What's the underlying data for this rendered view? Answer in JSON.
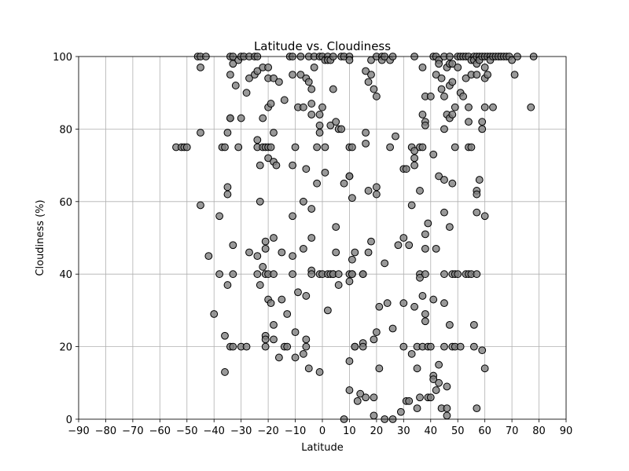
{
  "chart_data": {
    "type": "scatter",
    "title": "Latitude vs. Cloudiness",
    "xlabel": "Latitude",
    "ylabel": "Cloudiness (%)",
    "xlim": [
      -90,
      90
    ],
    "ylim": [
      0,
      100
    ],
    "xticks": [
      -90,
      -80,
      -70,
      -60,
      -50,
      -40,
      -30,
      -20,
      -10,
      0,
      10,
      20,
      30,
      40,
      50,
      60,
      70,
      80,
      90
    ],
    "yticks": [
      0,
      20,
      40,
      60,
      80,
      100
    ],
    "grid": true,
    "legend": "none",
    "marker_color": "#808080",
    "edge_color": "#000000",
    "points": [
      [
        -54,
        75
      ],
      [
        -52,
        75
      ],
      [
        -51,
        75
      ],
      [
        -50,
        75
      ],
      [
        -46,
        100
      ],
      [
        -45,
        100
      ],
      [
        -45,
        97
      ],
      [
        -45,
        79
      ],
      [
        -45,
        59
      ],
      [
        -43,
        100
      ],
      [
        -42,
        45
      ],
      [
        -40,
        29
      ],
      [
        -38,
        56
      ],
      [
        -38,
        40
      ],
      [
        -37,
        75
      ],
      [
        -36,
        75
      ],
      [
        -36,
        23
      ],
      [
        -36,
        13
      ],
      [
        -35,
        79
      ],
      [
        -35,
        64
      ],
      [
        -35,
        62
      ],
      [
        -35,
        37
      ],
      [
        -34,
        100
      ],
      [
        -34,
        95
      ],
      [
        -34,
        83
      ],
      [
        -34,
        83
      ],
      [
        -34,
        20
      ],
      [
        -33,
        100
      ],
      [
        -33,
        98
      ],
      [
        -33,
        48
      ],
      [
        -33,
        40
      ],
      [
        -33,
        20
      ],
      [
        -32,
        92
      ],
      [
        -31,
        99
      ],
      [
        -31,
        75
      ],
      [
        -30,
        100
      ],
      [
        -30,
        83
      ],
      [
        -30,
        20
      ],
      [
        -29,
        100
      ],
      [
        -28,
        90
      ],
      [
        -28,
        20
      ],
      [
        -27,
        100
      ],
      [
        -27,
        94
      ],
      [
        -27,
        46
      ],
      [
        -25,
        100
      ],
      [
        -25,
        95
      ],
      [
        -24,
        100
      ],
      [
        -24,
        96
      ],
      [
        -24,
        77
      ],
      [
        -24,
        75
      ],
      [
        -24,
        45
      ],
      [
        -24,
        40
      ],
      [
        -23,
        70
      ],
      [
        -23,
        60
      ],
      [
        -23,
        37
      ],
      [
        -22,
        97
      ],
      [
        -22,
        83
      ],
      [
        -22,
        75
      ],
      [
        -22,
        42
      ],
      [
        -21,
        75
      ],
      [
        -21,
        49
      ],
      [
        -21,
        47
      ],
      [
        -21,
        40
      ],
      [
        -21,
        23
      ],
      [
        -21,
        22
      ],
      [
        -21,
        20
      ],
      [
        -20,
        97
      ],
      [
        -20,
        94
      ],
      [
        -20,
        86
      ],
      [
        -20,
        75
      ],
      [
        -20,
        72
      ],
      [
        -20,
        40
      ],
      [
        -20,
        33
      ],
      [
        -19,
        87
      ],
      [
        -19,
        75
      ],
      [
        -19,
        32
      ],
      [
        -18,
        94
      ],
      [
        -18,
        79
      ],
      [
        -18,
        71
      ],
      [
        -18,
        50
      ],
      [
        -18,
        40
      ],
      [
        -18,
        26
      ],
      [
        -18,
        22
      ],
      [
        -17,
        70
      ],
      [
        -16,
        93
      ],
      [
        -16,
        17
      ],
      [
        -15,
        46
      ],
      [
        -15,
        33
      ],
      [
        -14,
        88
      ],
      [
        -14,
        20
      ],
      [
        -13,
        29
      ],
      [
        -13,
        20
      ],
      [
        -12,
        100
      ],
      [
        -11,
        100
      ],
      [
        -11,
        95
      ],
      [
        -11,
        70
      ],
      [
        -11,
        56
      ],
      [
        -11,
        45
      ],
      [
        -11,
        40
      ],
      [
        -10,
        75
      ],
      [
        -10,
        24
      ],
      [
        -10,
        17
      ],
      [
        -9,
        86
      ],
      [
        -9,
        35
      ],
      [
        -8,
        100
      ],
      [
        -8,
        95
      ],
      [
        -7,
        86
      ],
      [
        -7,
        60
      ],
      [
        -7,
        47
      ],
      [
        -7,
        18
      ],
      [
        -6,
        94
      ],
      [
        -6,
        69
      ],
      [
        -6,
        34
      ],
      [
        -6,
        22
      ],
      [
        -6,
        20
      ],
      [
        -5,
        14
      ],
      [
        -5,
        100
      ],
      [
        -5,
        93
      ],
      [
        -4,
        91
      ],
      [
        -4,
        87
      ],
      [
        -4,
        84
      ],
      [
        -4,
        50
      ],
      [
        -4,
        41
      ],
      [
        -4,
        40
      ],
      [
        -4,
        58
      ],
      [
        -3,
        100
      ],
      [
        -3,
        97
      ],
      [
        -2,
        75
      ],
      [
        -2,
        65
      ],
      [
        -1,
        100
      ],
      [
        -1,
        84
      ],
      [
        -1,
        79
      ],
      [
        -1,
        81
      ],
      [
        -1,
        40
      ],
      [
        -1,
        13
      ],
      [
        0,
        100
      ],
      [
        0,
        86
      ],
      [
        0,
        40
      ],
      [
        1,
        99
      ],
      [
        1,
        75
      ],
      [
        1,
        68
      ],
      [
        2,
        100
      ],
      [
        2,
        99
      ],
      [
        2,
        30
      ],
      [
        2,
        40
      ],
      [
        3,
        99
      ],
      [
        3,
        81
      ],
      [
        3,
        40
      ],
      [
        4,
        100
      ],
      [
        4,
        91
      ],
      [
        4,
        40
      ],
      [
        4,
        40
      ],
      [
        5,
        82
      ],
      [
        5,
        53
      ],
      [
        5,
        46
      ],
      [
        6,
        80
      ],
      [
        6,
        40
      ],
      [
        6,
        37
      ],
      [
        7,
        100
      ],
      [
        7,
        80
      ],
      [
        8,
        100
      ],
      [
        8,
        65
      ],
      [
        8,
        0
      ],
      [
        10,
        100
      ],
      [
        10,
        99
      ],
      [
        10,
        75
      ],
      [
        10,
        67
      ],
      [
        10,
        67
      ],
      [
        10,
        40
      ],
      [
        10,
        38
      ],
      [
        10,
        16
      ],
      [
        10,
        8
      ],
      [
        11,
        75
      ],
      [
        11,
        61
      ],
      [
        11,
        44
      ],
      [
        11,
        40
      ],
      [
        11,
        40
      ],
      [
        12,
        46
      ],
      [
        12,
        20
      ],
      [
        12,
        20
      ],
      [
        13,
        5
      ],
      [
        14,
        7
      ],
      [
        15,
        40
      ],
      [
        15,
        40
      ],
      [
        15,
        21
      ],
      [
        15,
        20
      ],
      [
        16,
        96
      ],
      [
        16,
        79
      ],
      [
        16,
        76
      ],
      [
        16,
        6
      ],
      [
        17,
        93
      ],
      [
        17,
        63
      ],
      [
        17,
        46
      ],
      [
        18,
        99
      ],
      [
        18,
        95
      ],
      [
        18,
        49
      ],
      [
        19,
        91
      ],
      [
        19,
        22
      ],
      [
        19,
        6
      ],
      [
        19,
        1
      ],
      [
        20,
        100
      ],
      [
        20,
        89
      ],
      [
        20,
        64
      ],
      [
        20,
        62
      ],
      [
        20,
        24
      ],
      [
        21,
        31
      ],
      [
        21,
        14
      ],
      [
        22,
        100
      ],
      [
        22,
        99
      ],
      [
        23,
        100
      ],
      [
        23,
        43
      ],
      [
        23,
        0
      ],
      [
        24,
        32
      ],
      [
        25,
        99
      ],
      [
        25,
        75
      ],
      [
        26,
        100
      ],
      [
        26,
        25
      ],
      [
        26,
        0
      ],
      [
        27,
        78
      ],
      [
        28,
        48
      ],
      [
        29,
        2
      ],
      [
        30,
        69
      ],
      [
        30,
        50
      ],
      [
        30,
        32
      ],
      [
        30,
        20
      ],
      [
        31,
        69
      ],
      [
        31,
        5
      ],
      [
        32,
        48
      ],
      [
        32,
        5
      ],
      [
        33,
        75
      ],
      [
        33,
        59
      ],
      [
        33,
        18
      ],
      [
        34,
        100
      ],
      [
        34,
        74
      ],
      [
        34,
        72
      ],
      [
        34,
        70
      ],
      [
        34,
        31
      ],
      [
        35,
        20
      ],
      [
        35,
        14
      ],
      [
        35,
        3
      ],
      [
        36,
        75
      ],
      [
        36,
        63
      ],
      [
        36,
        40
      ],
      [
        36,
        39
      ],
      [
        36,
        6
      ],
      [
        37,
        97
      ],
      [
        37,
        84
      ],
      [
        37,
        75
      ],
      [
        37,
        34
      ],
      [
        37,
        20
      ],
      [
        38,
        89
      ],
      [
        38,
        82
      ],
      [
        38,
        81
      ],
      [
        38,
        51
      ],
      [
        38,
        47
      ],
      [
        38,
        40
      ],
      [
        38,
        29
      ],
      [
        38,
        27
      ],
      [
        39,
        54
      ],
      [
        39,
        20
      ],
      [
        39,
        6
      ],
      [
        40,
        89
      ],
      [
        40,
        20
      ],
      [
        40,
        6
      ],
      [
        41,
        100
      ],
      [
        41,
        73
      ],
      [
        41,
        33
      ],
      [
        41,
        12
      ],
      [
        41,
        11
      ],
      [
        42,
        100
      ],
      [
        42,
        95
      ],
      [
        42,
        47
      ],
      [
        42,
        8
      ],
      [
        43,
        99
      ],
      [
        43,
        98
      ],
      [
        43,
        67
      ],
      [
        43,
        15
      ],
      [
        43,
        10
      ],
      [
        44,
        94
      ],
      [
        44,
        91
      ],
      [
        44,
        3
      ],
      [
        45,
        100
      ],
      [
        45,
        89
      ],
      [
        45,
        80
      ],
      [
        45,
        66
      ],
      [
        45,
        57
      ],
      [
        45,
        40
      ],
      [
        45,
        32
      ],
      [
        45,
        20
      ],
      [
        46,
        97
      ],
      [
        46,
        84
      ],
      [
        46,
        3
      ],
      [
        46,
        1
      ],
      [
        46,
        9
      ],
      [
        47,
        100
      ],
      [
        47,
        98
      ],
      [
        47,
        92
      ],
      [
        47,
        83
      ],
      [
        47,
        53
      ],
      [
        47,
        26
      ],
      [
        48,
        98
      ],
      [
        48,
        93
      ],
      [
        48,
        84
      ],
      [
        48,
        65
      ],
      [
        48,
        40
      ],
      [
        48,
        20
      ],
      [
        49,
        86
      ],
      [
        49,
        75
      ],
      [
        49,
        40
      ],
      [
        49,
        20
      ],
      [
        50,
        100
      ],
      [
        50,
        97
      ],
      [
        50,
        40
      ],
      [
        51,
        100
      ],
      [
        51,
        90
      ],
      [
        51,
        20
      ],
      [
        52,
        100
      ],
      [
        52,
        89
      ],
      [
        53,
        100
      ],
      [
        53,
        94
      ],
      [
        53,
        40
      ],
      [
        54,
        100
      ],
      [
        54,
        86
      ],
      [
        54,
        82
      ],
      [
        54,
        75
      ],
      [
        54,
        40
      ],
      [
        55,
        99
      ],
      [
        55,
        95
      ],
      [
        55,
        75
      ],
      [
        55,
        40
      ],
      [
        56,
        100
      ],
      [
        56,
        99
      ],
      [
        56,
        26
      ],
      [
        56,
        20
      ],
      [
        57,
        100
      ],
      [
        57,
        98
      ],
      [
        57,
        95
      ],
      [
        57,
        63
      ],
      [
        57,
        62
      ],
      [
        57,
        57
      ],
      [
        57,
        40
      ],
      [
        57,
        3
      ],
      [
        58,
        100
      ],
      [
        58,
        99
      ],
      [
        58,
        66
      ],
      [
        59,
        100
      ],
      [
        59,
        82
      ],
      [
        59,
        80
      ],
      [
        59,
        19
      ],
      [
        60,
        100
      ],
      [
        60,
        97
      ],
      [
        60,
        94
      ],
      [
        60,
        86
      ],
      [
        60,
        56
      ],
      [
        60,
        14
      ],
      [
        61,
        100
      ],
      [
        61,
        95
      ],
      [
        62,
        100
      ],
      [
        62,
        99
      ],
      [
        63,
        100
      ],
      [
        63,
        86
      ],
      [
        64,
        100
      ],
      [
        65,
        100
      ],
      [
        66,
        100
      ],
      [
        67,
        100
      ],
      [
        68,
        100
      ],
      [
        69,
        100
      ],
      [
        70,
        99
      ],
      [
        71,
        95
      ],
      [
        72,
        100
      ],
      [
        77,
        86
      ],
      [
        78,
        100
      ]
    ]
  }
}
